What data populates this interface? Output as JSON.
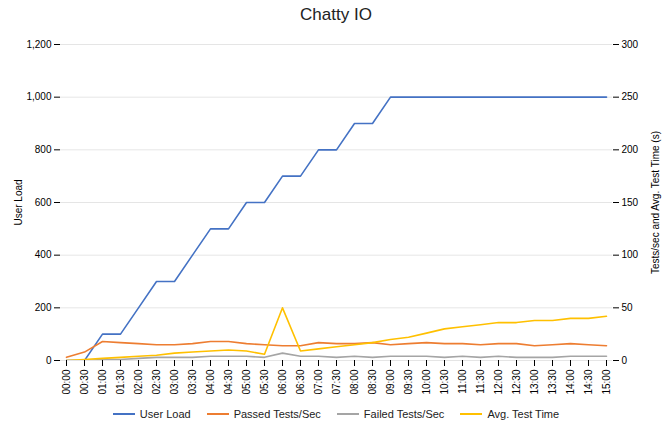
{
  "chart_data": {
    "type": "line",
    "title": "Chatty IO",
    "ylabel": "User Load",
    "y2label": "Tests/sec and Avg. Test Time (s)",
    "categories": [
      "00:00",
      "00:30",
      "01:00",
      "01:30",
      "02:00",
      "02:30",
      "03:00",
      "03:30",
      "04:00",
      "04:30",
      "05:00",
      "05:30",
      "06:00",
      "06:30",
      "07:00",
      "07:30",
      "08:00",
      "08:30",
      "09:00",
      "09:30",
      "10:00",
      "10:30",
      "11:00",
      "11:30",
      "12:00",
      "12:30",
      "13:00",
      "13:30",
      "14:00",
      "14:30",
      "15:00"
    ],
    "series": [
      {
        "name": "User Load",
        "color": "#4472C4",
        "values": [
          0,
          0,
          100,
          100,
          200,
          300,
          300,
          400,
          500,
          500,
          600,
          600,
          700,
          700,
          800,
          800,
          900,
          900,
          1000,
          1000,
          1000,
          1000,
          1000,
          1000,
          1000,
          1000,
          1000,
          1000,
          1000,
          1000,
          1000
        ]
      },
      {
        "name": "Passed Tests/Sec",
        "color": "#ED7D31",
        "axis": "y2",
        "values": [
          3,
          8,
          18,
          17,
          16,
          15,
          15,
          16,
          18,
          18,
          16,
          15,
          14,
          14,
          17,
          16,
          16,
          17,
          15,
          16,
          17,
          16,
          16,
          15,
          16,
          16,
          14,
          15,
          16,
          15,
          14
        ]
      },
      {
        "name": "Failed Tests/Sec",
        "color": "#A5A5A5",
        "axis": "y2",
        "values": [
          0,
          0,
          1,
          1,
          2,
          3,
          3,
          3,
          4,
          4,
          4,
          3,
          7,
          4,
          4,
          3,
          4,
          3,
          4,
          4,
          4,
          3,
          4,
          3,
          4,
          3,
          3,
          3,
          4,
          4,
          4
        ]
      },
      {
        "name": "Avg. Test Time",
        "color": "#FFC000",
        "axis": "y2",
        "values": [
          0,
          1,
          2,
          3,
          4,
          5,
          7,
          8,
          9,
          10,
          9,
          6,
          50,
          9,
          11,
          13,
          15,
          17,
          20,
          22,
          26,
          30,
          32,
          34,
          36,
          36,
          38,
          38,
          40,
          40,
          42
        ]
      }
    ],
    "ylim": [
      0,
      1200
    ],
    "yticks": [
      0,
      200,
      400,
      600,
      800,
      1000,
      1200
    ],
    "y2lim": [
      0,
      300
    ],
    "y2ticks": [
      0,
      50,
      100,
      150,
      200,
      250,
      300
    ],
    "grid": true,
    "legend": "bottom"
  }
}
